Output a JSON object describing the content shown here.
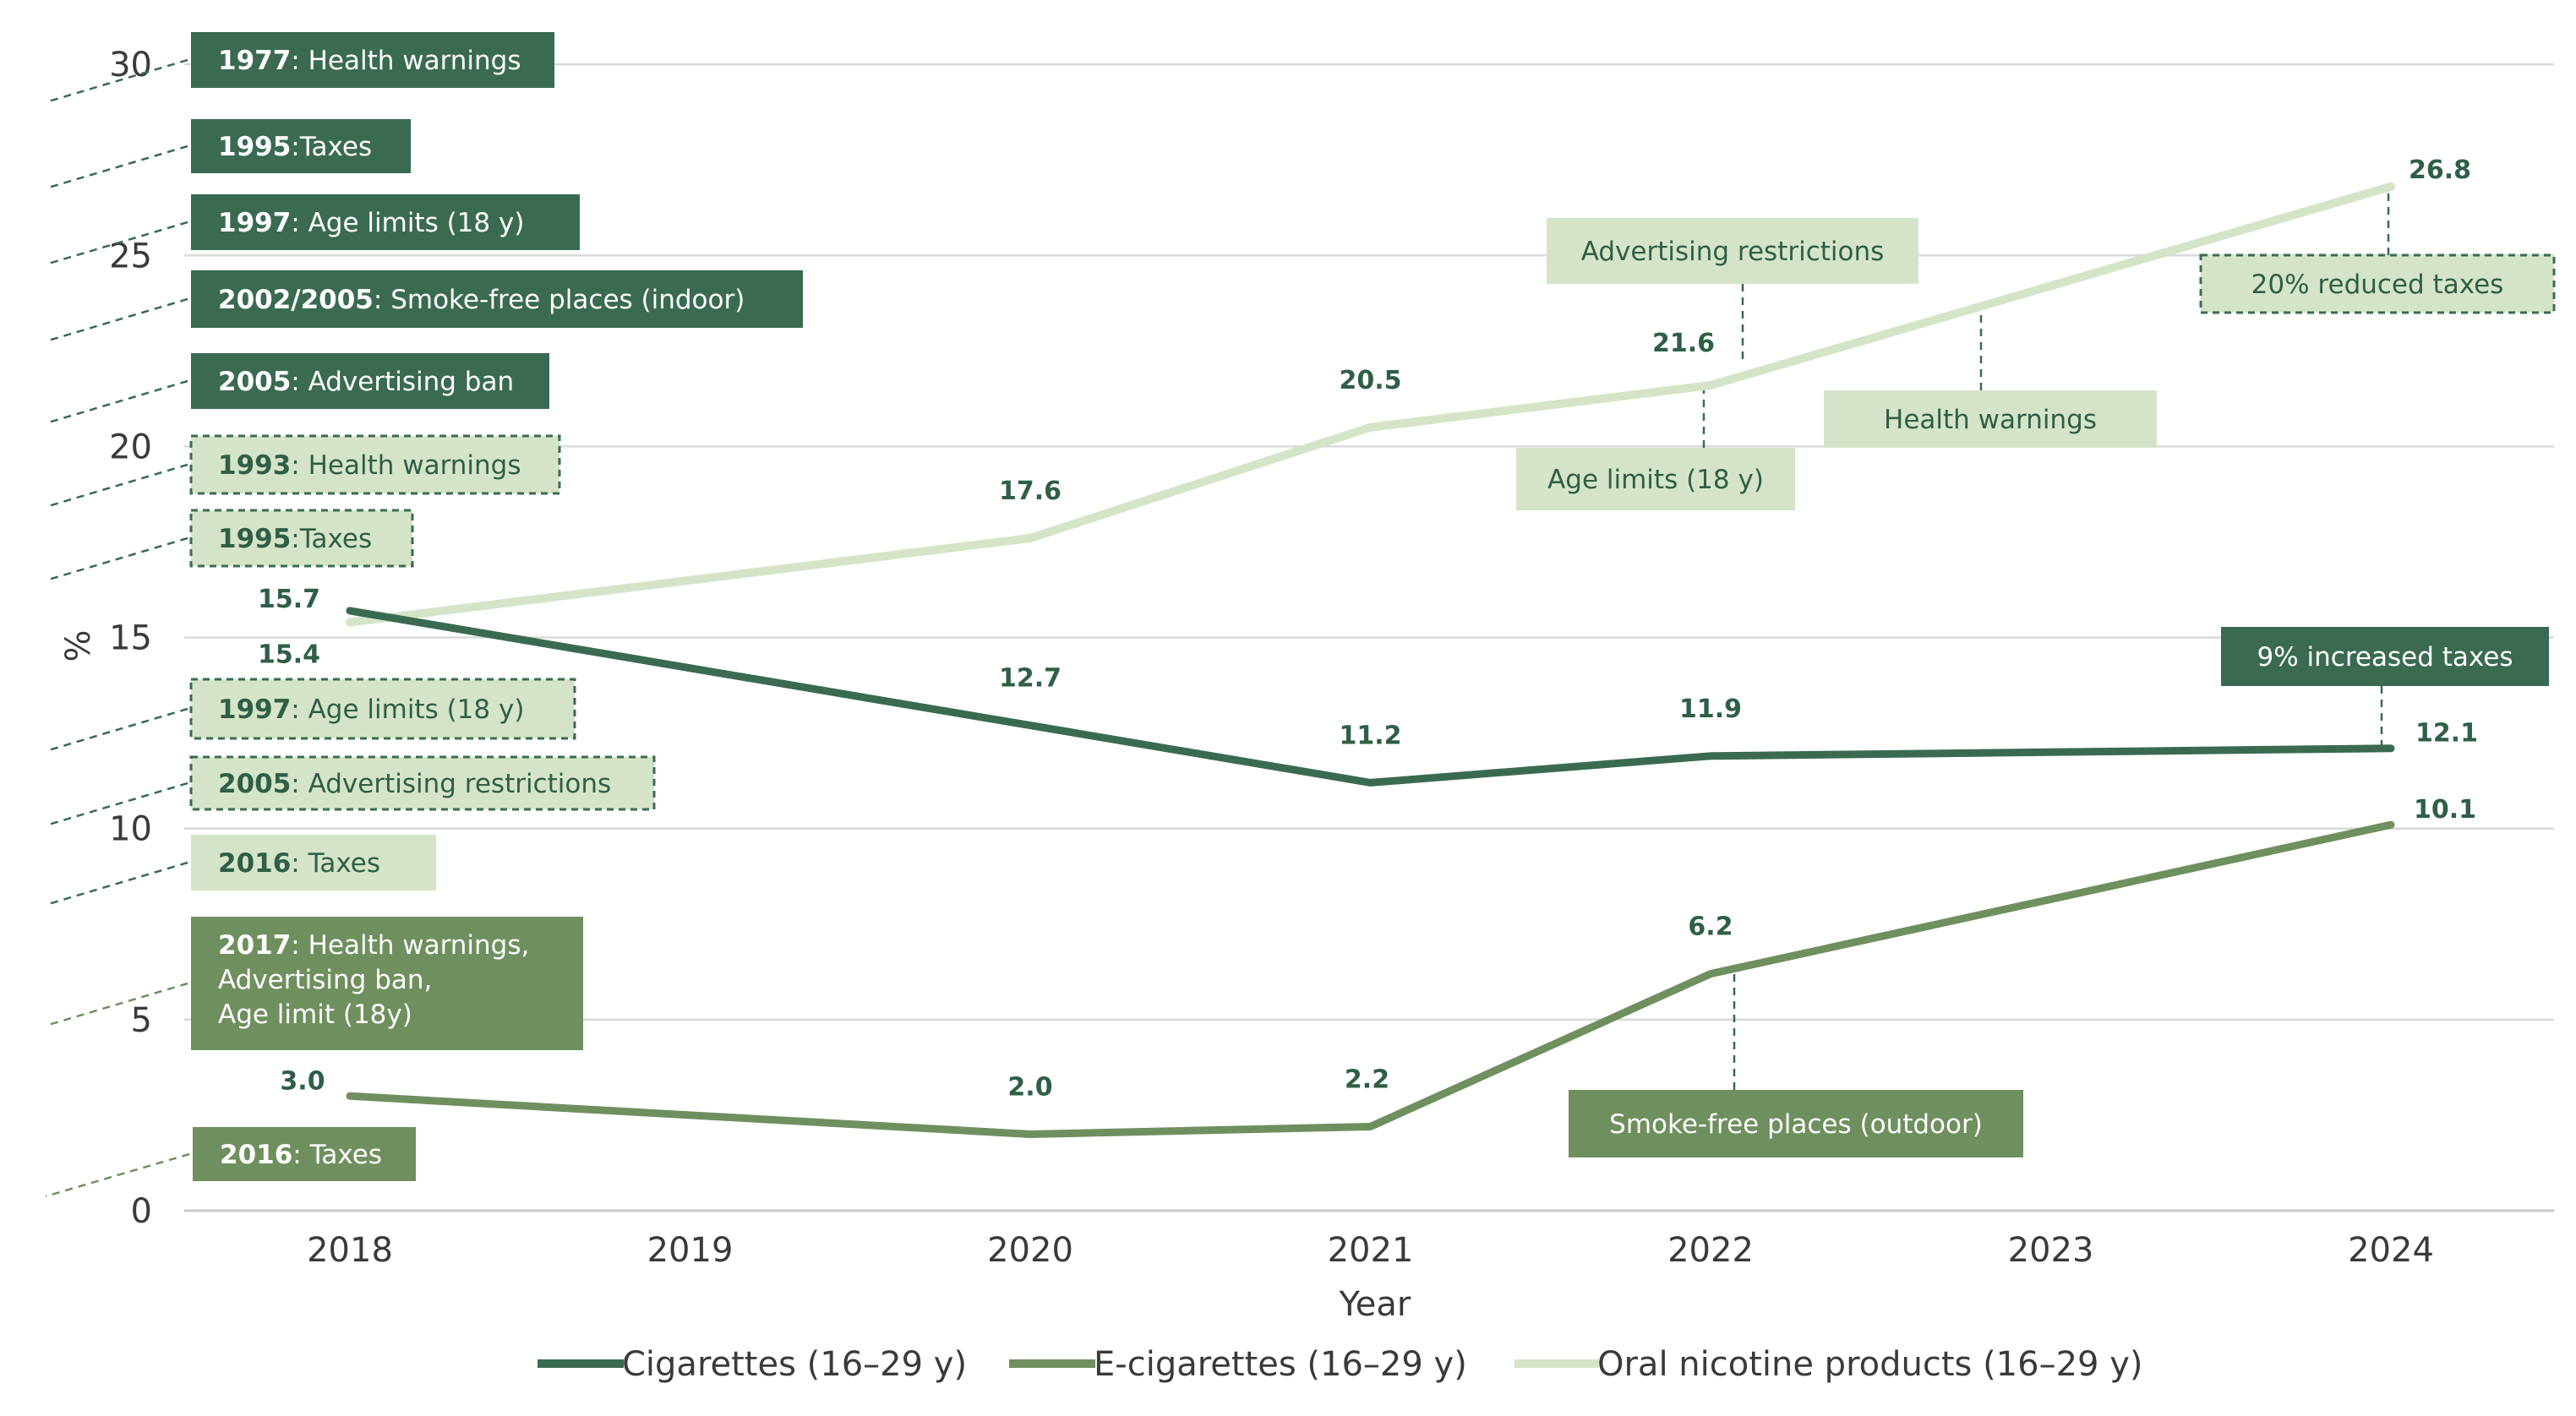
{
  "colors": {
    "cigarettes": "#3a6b52",
    "ecigarettes": "#6f8f5f",
    "oral": "#d5e4c8",
    "grid": "#d9d9d9",
    "axis": "#c8c8c8",
    "text": "#3a3a3a",
    "label": "#2f5f46",
    "anno_dark": "#3a6b52",
    "anno_mid": "#6f8f5f",
    "anno_light": "#d5e4c8",
    "anno_dashed_border": "#3a6b52"
  },
  "chart_data": {
    "type": "line",
    "title": "",
    "xlabel": "Year",
    "ylabel": "%",
    "x": [
      2018,
      2019,
      2020,
      2021,
      2022,
      2023,
      2024
    ],
    "x_tick_labels": [
      "2018",
      "2019",
      "2020",
      "2021",
      "2022",
      "2023",
      "2024"
    ],
    "y_ticks": [
      0,
      5,
      10,
      15,
      20,
      25,
      30
    ],
    "y_tick_labels": [
      "0",
      "5",
      "10",
      "15",
      "20",
      "25",
      "30"
    ],
    "ylim": [
      0,
      30
    ],
    "grid": true,
    "legend_position": "bottom",
    "series": [
      {
        "key": "cigarettes",
        "name": "Cigarettes (16–29 y)",
        "points": [
          [
            2018,
            15.7
          ],
          [
            2020,
            12.7
          ],
          [
            2021,
            11.2
          ],
          [
            2022,
            11.9
          ],
          [
            2024,
            12.1
          ]
        ],
        "labels": [
          "15.7",
          "12.7",
          "11.2",
          "11.9",
          "12.1"
        ]
      },
      {
        "key": "ecigarettes",
        "name": "E-cigarettes (16–29 y)",
        "points": [
          [
            2018,
            3.0
          ],
          [
            2020,
            2.0
          ],
          [
            2021,
            2.2
          ],
          [
            2022,
            6.2
          ],
          [
            2024,
            10.1
          ]
        ],
        "labels": [
          "3.0",
          "2.0",
          "2.2",
          "6.2",
          "10.1"
        ]
      },
      {
        "key": "oral",
        "name": "Oral nicotine products (16–29 y)",
        "points": [
          [
            2018,
            15.4
          ],
          [
            2020,
            17.6
          ],
          [
            2021,
            20.5
          ],
          [
            2022,
            21.6
          ],
          [
            2024,
            26.8
          ]
        ],
        "labels": [
          "15.4",
          "17.6",
          "20.5",
          "21.6",
          "26.8"
        ]
      }
    ],
    "left_annotations": [
      {
        "year": "1977",
        "text": ": Health warnings",
        "style": "dark"
      },
      {
        "year": "1995",
        "text": ":Taxes",
        "style": "dark"
      },
      {
        "year": "1997",
        "text": ": Age limits  (18 y)",
        "style": "dark"
      },
      {
        "year": "2002/2005",
        "text": ": Smoke-free places (indoor)",
        "style": "dark"
      },
      {
        "year": "2005",
        "text": ": Advertising ban",
        "style": "dark"
      },
      {
        "year": "1993",
        "text": ": Health warnings",
        "style": "light-dashed"
      },
      {
        "year": "1995",
        "text": ":Taxes",
        "style": "light-dashed"
      },
      {
        "year": "1997",
        "text": ": Age limits  (18 y)",
        "style": "light-dashed"
      },
      {
        "year": "2005",
        "text": ": Advertising restrictions",
        "style": "light-dashed"
      },
      {
        "year": "2016",
        "text": ": Taxes",
        "style": "light"
      },
      {
        "year": "2017",
        "text": ": Health warnings,",
        "extra_lines": [
          "Advertising ban,",
          "Age limit (18y)"
        ],
        "style": "mid"
      },
      {
        "year": "2016",
        "text": ": Taxes",
        "style": "mid"
      }
    ],
    "event_annotations": [
      {
        "text": "Advertising restrictions",
        "style": "light"
      },
      {
        "text": "Health warnings",
        "style": "light"
      },
      {
        "text": "Age limits (18 y)",
        "style": "light"
      },
      {
        "text": "20% reduced taxes",
        "style": "light-dashed"
      },
      {
        "text": "9% increased taxes",
        "style": "dark"
      },
      {
        "text": "Smoke-free places (outdoor)",
        "style": "mid"
      }
    ]
  }
}
